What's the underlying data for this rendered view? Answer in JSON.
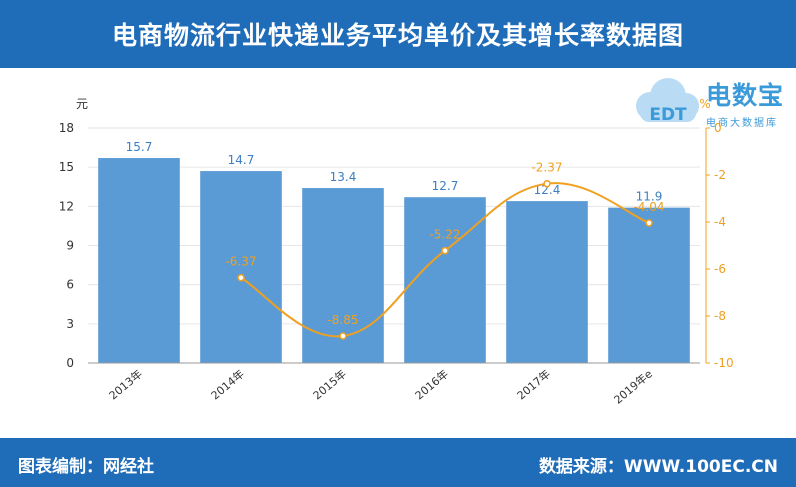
{
  "header": {
    "title": "电商物流行业快递业务平均单价及其增长率数据图"
  },
  "logo": {
    "brand": "电数宝",
    "subtitle": "电商大数据库",
    "icon_text": "EDT",
    "icon": "cloud-icon"
  },
  "footer": {
    "left": "图表编制：网经社",
    "right": "数据来源：WWW.100EC.CN"
  },
  "colors": {
    "header_bg": "#1f6cb8",
    "bar": "#5b9bd5",
    "line": "#f0a020",
    "axis_left_text": "#333333",
    "axis_right_text": "#f0a020"
  },
  "chart_data": {
    "type": "bar",
    "categories": [
      "2013年",
      "2014年",
      "2015年",
      "2016年",
      "2017年",
      "2019年e"
    ],
    "series": [
      {
        "values": [
          15.7,
          14.7,
          13.4,
          12.7,
          12.4,
          11.9
        ],
        "kind": "bar",
        "axis": "left"
      },
      {
        "values": [
          null,
          -6.37,
          -8.85,
          -5.22,
          -2.37,
          -4.04
        ],
        "kind": "line",
        "axis": "right"
      }
    ],
    "ylabel": "元",
    "ylabel_right": "%",
    "ylim": [
      0,
      18
    ],
    "yticks": [
      0,
      3,
      6,
      9,
      12,
      15,
      18
    ],
    "ylim_right": [
      -10,
      0
    ],
    "yticks_right": [
      0,
      -2,
      -4,
      -6,
      -8,
      -10
    ],
    "grid": true
  }
}
